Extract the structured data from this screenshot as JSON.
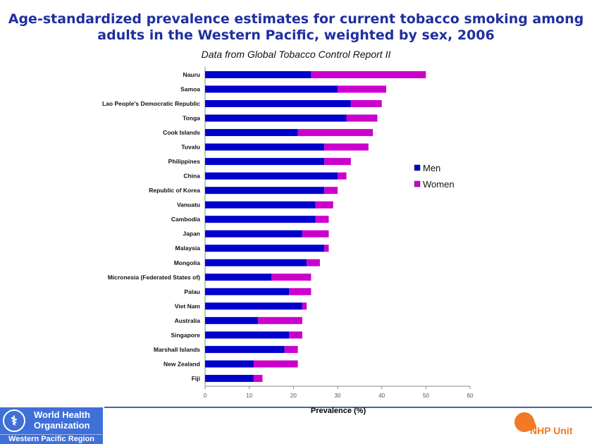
{
  "chart_data": {
    "type": "bar",
    "orientation": "horizontal",
    "stacked": true,
    "title": "Age-standardized prevalence estimates for current tobacco smoking among adults in the Western Pacific, weighted by sex, 2006",
    "subtitle": "Data from Global Tobacco Control Report II",
    "xlabel": "Prevalence (%)",
    "ylabel": "",
    "xlim": [
      0,
      60
    ],
    "xticks": [
      "0",
      "10",
      "20",
      "30",
      "40",
      "50",
      "60"
    ],
    "grid": false,
    "legend_position": "right",
    "categories": [
      "Nauru",
      "Samoa",
      "Lao People's Democratic Republic",
      "Tonga",
      "Cook Islands",
      "Tuvalu",
      "Philippines",
      "China",
      "Republic of Korea",
      "Vanuatu",
      "Cambodia",
      "Japan",
      "Malaysia",
      "Mongolia",
      "Micronesia (Federated States of)",
      "Palau",
      "Viet Nam",
      "Australia",
      "Singapore",
      "Marshall Islands",
      "New Zealand",
      "Fiji"
    ],
    "series": [
      {
        "name": "Men",
        "color": "#0000cc",
        "values": [
          24,
          30,
          33,
          32,
          21,
          27,
          27,
          30,
          27,
          25,
          25,
          22,
          27,
          23,
          15,
          19,
          22,
          12,
          19,
          18,
          11,
          11
        ]
      },
      {
        "name": "Women",
        "color": "#cc00cc",
        "values": [
          26,
          11,
          7,
          7,
          17,
          10,
          6,
          2,
          3,
          4,
          3,
          6,
          1,
          3,
          9,
          5,
          1,
          10,
          3,
          3,
          10,
          2
        ]
      }
    ]
  },
  "footer": {
    "who_line1": "World Health",
    "who_line2": "Organization",
    "who_region": "Western Pacific Region",
    "unit": "NHP Unit"
  }
}
